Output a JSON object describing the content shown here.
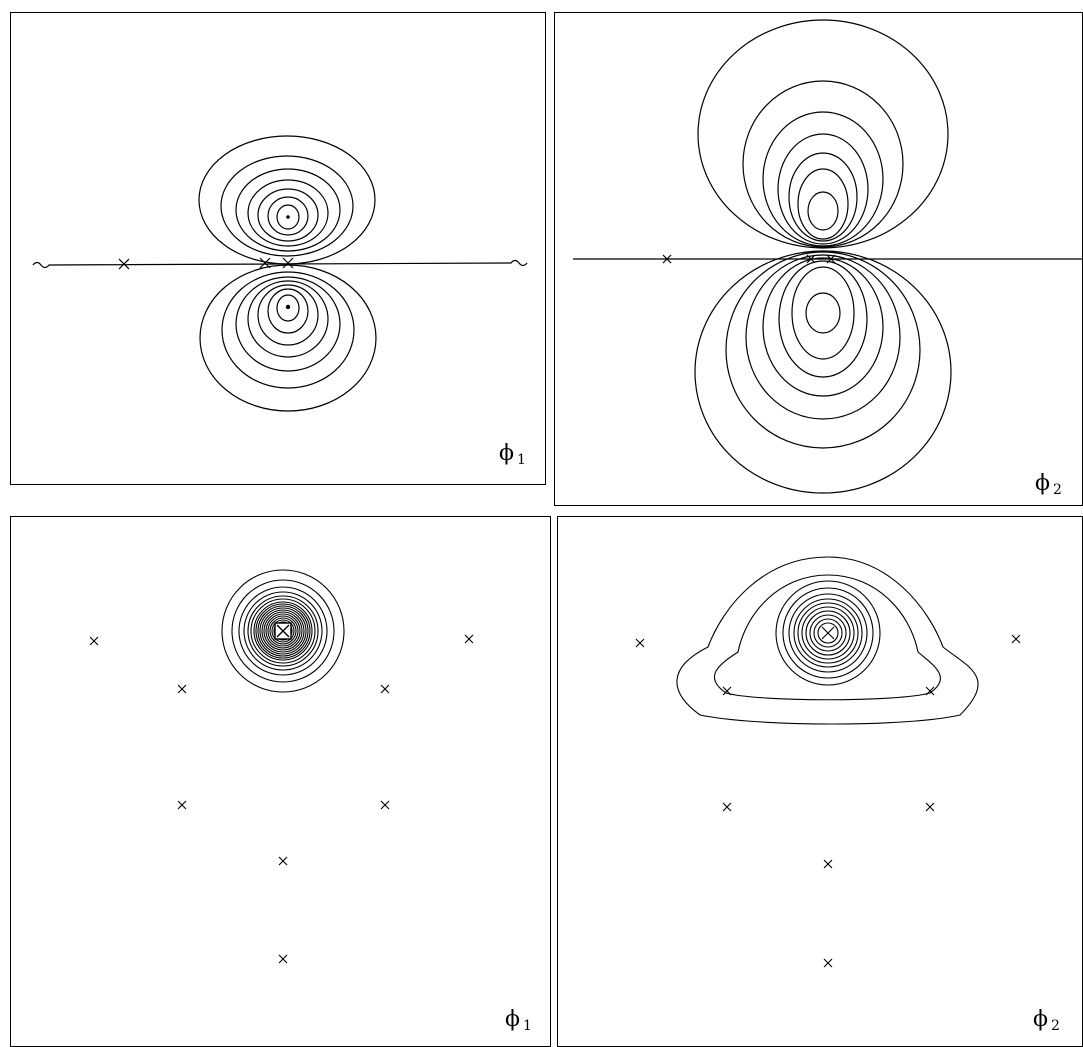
{
  "panels": [
    {
      "id": "top-left",
      "label_symbol": "ϕ",
      "label_subscript": "1"
    },
    {
      "id": "top-right",
      "label_symbol": "ϕ",
      "label_subscript": "2"
    },
    {
      "id": "bottom-left",
      "label_symbol": "ϕ",
      "label_subscript": "1"
    },
    {
      "id": "bottom-right",
      "label_symbol": "ϕ",
      "label_subscript": "2"
    }
  ],
  "line_color": "#000000",
  "marker_symbol": "×"
}
